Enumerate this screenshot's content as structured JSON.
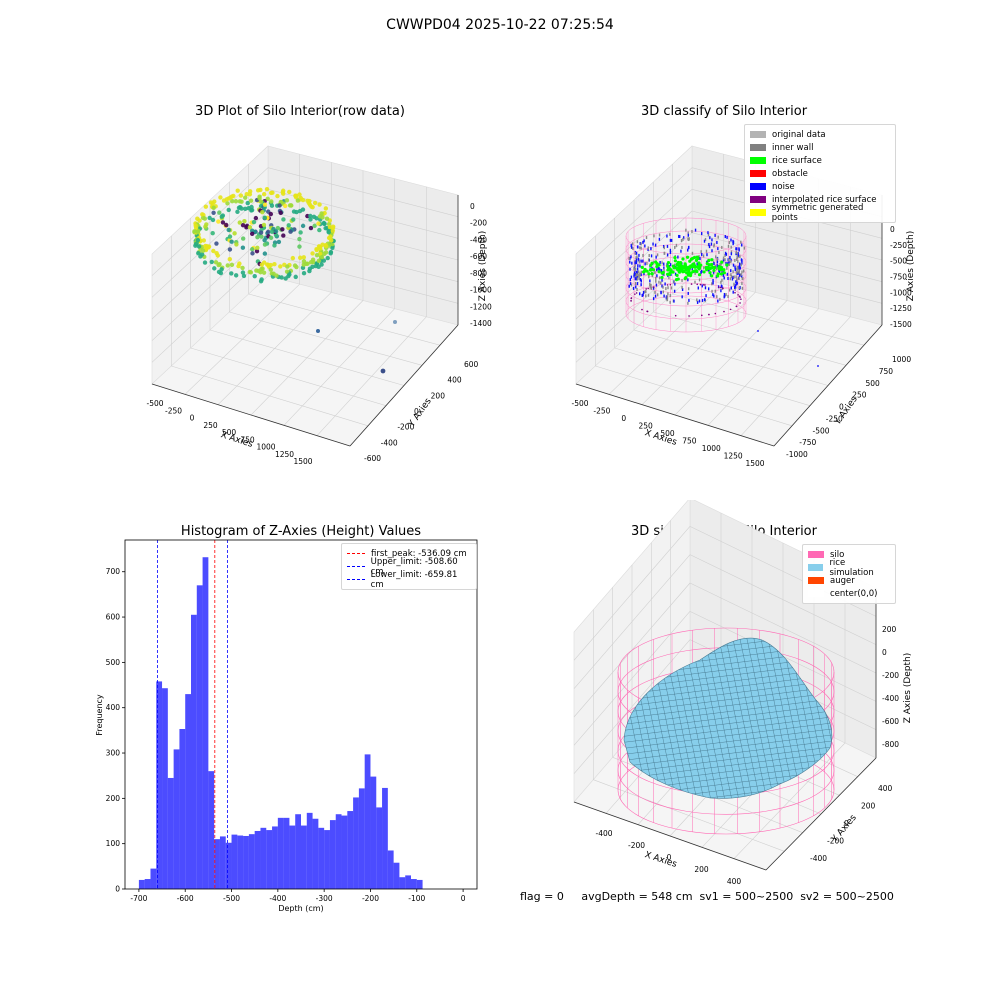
{
  "suptitle": "CWWPD04 2025-10-22 07:25:54",
  "footer": "flag = 0     avgDepth = 548 cm  sv1 = 500~2500  sv2 = 500~2500",
  "panel1": {
    "title": "3D Plot of Silo Interior(row data)",
    "xlabel": "X Axies",
    "ylabel": "Y Axies",
    "zlabel": "Z Axies (Depth)",
    "xticks": [
      "-500",
      "-250",
      "0",
      "250",
      "500",
      "750",
      "1000",
      "1250",
      "1500"
    ],
    "yticks": [
      "-600",
      "-400",
      "-200",
      "0",
      "200",
      "400",
      "600"
    ],
    "zticks": [
      "0",
      "-200",
      "-400",
      "-600",
      "-800",
      "-1000",
      "-1200",
      "-1400"
    ]
  },
  "panel2": {
    "title": "3D classify of Silo Interior",
    "xlabel": "X Axies",
    "ylabel": "Y Axies",
    "zlabel": "Z Axies (Depth)",
    "xticks": [
      "-500",
      "-250",
      "0",
      "250",
      "500",
      "750",
      "1000",
      "1250",
      "1500"
    ],
    "yticks": [
      "-1000",
      "-750",
      "-500",
      "-250",
      "0",
      "250",
      "500",
      "750",
      "1000"
    ],
    "zticks": [
      "0",
      "-250",
      "-500",
      "-750",
      "-1000",
      "-1250",
      "-1500"
    ],
    "legend": [
      {
        "label": "original data",
        "color": "#b3b3b3"
      },
      {
        "label": "inner wall",
        "color": "#808080"
      },
      {
        "label": "rice surface",
        "color": "#00ff00"
      },
      {
        "label": "obstacle",
        "color": "#ff0000"
      },
      {
        "label": "noise",
        "color": "#0000ff"
      },
      {
        "label": "interpolated rice surface",
        "color": "#800080"
      },
      {
        "label": "symmetric generated points",
        "color": "#ffff00"
      }
    ]
  },
  "panel4": {
    "title": "3D simulation of Silo Interior",
    "xlabel": "X Axies",
    "ylabel": "Y Axies",
    "zlabel": "Z Axies (Depth)",
    "xticks": [
      "-400",
      "-200",
      "0",
      "200",
      "400"
    ],
    "yticks": [
      "-400",
      "-200",
      "0",
      "200",
      "400"
    ],
    "zticks": [
      "200",
      "0",
      "-200",
      "-400",
      "-600",
      "-800"
    ],
    "legend": [
      {
        "label": "silo",
        "color": "#ff69b4"
      },
      {
        "label": "rice simulation",
        "color": "#87ceeb"
      },
      {
        "label": "auger",
        "color": "#ff4500"
      },
      {
        "label": "center(0,0)",
        "color": "#ffffff"
      }
    ]
  },
  "chart_data": {
    "type": "bar",
    "title": "Histogram of Z-Axies (Height) Values",
    "xlabel": "Depth (cm)",
    "ylabel": "Frequency",
    "xlim": [
      -730,
      30
    ],
    "ylim": [
      0,
      770
    ],
    "xticks": [
      -700,
      -600,
      -500,
      -400,
      -300,
      -200,
      -100,
      0
    ],
    "yticks": [
      0,
      100,
      200,
      300,
      400,
      500,
      600,
      700
    ],
    "bar_color": "#0000ff",
    "bin_width": 12.5,
    "bins": [
      [
        -700,
        20
      ],
      [
        -687.5,
        22
      ],
      [
        -675,
        45
      ],
      [
        -662.5,
        458
      ],
      [
        -650,
        443
      ],
      [
        -637.5,
        245
      ],
      [
        -625,
        308
      ],
      [
        -612.5,
        353
      ],
      [
        -600,
        430
      ],
      [
        -587.5,
        605
      ],
      [
        -575,
        670
      ],
      [
        -562.5,
        732
      ],
      [
        -550,
        260
      ],
      [
        -537.5,
        110
      ],
      [
        -525,
        116
      ],
      [
        -512.5,
        102
      ],
      [
        -500,
        120
      ],
      [
        -487.5,
        118
      ],
      [
        -475,
        117
      ],
      [
        -462.5,
        121
      ],
      [
        -450,
        128
      ],
      [
        -437.5,
        135
      ],
      [
        -425,
        130
      ],
      [
        -412.5,
        138
      ],
      [
        -400,
        157
      ],
      [
        -387.5,
        157
      ],
      [
        -375,
        140
      ],
      [
        -362.5,
        165
      ],
      [
        -350,
        140
      ],
      [
        -337.5,
        168
      ],
      [
        -325,
        155
      ],
      [
        -312.5,
        135
      ],
      [
        -300,
        130
      ],
      [
        -287.5,
        152
      ],
      [
        -275,
        165
      ],
      [
        -262.5,
        162
      ],
      [
        -250,
        172
      ],
      [
        -237.5,
        202
      ],
      [
        -225,
        222
      ],
      [
        -212.5,
        297
      ],
      [
        -200,
        248
      ],
      [
        -187.5,
        180
      ],
      [
        -175,
        223
      ],
      [
        -162.5,
        85
      ],
      [
        -150,
        58
      ],
      [
        -137.5,
        26
      ],
      [
        -125,
        30
      ],
      [
        -112.5,
        22
      ],
      [
        -100,
        20
      ]
    ],
    "vlines": [
      {
        "label": "first_peak: -536.09 cm",
        "x": -536.09,
        "color": "#ff0000"
      },
      {
        "label": "Upper_limit: -508.60 cm",
        "x": -508.6,
        "color": "#0000ff"
      },
      {
        "label": "Lower_limit: -659.81 cm",
        "x": -659.81,
        "color": "#0000ff"
      }
    ]
  }
}
